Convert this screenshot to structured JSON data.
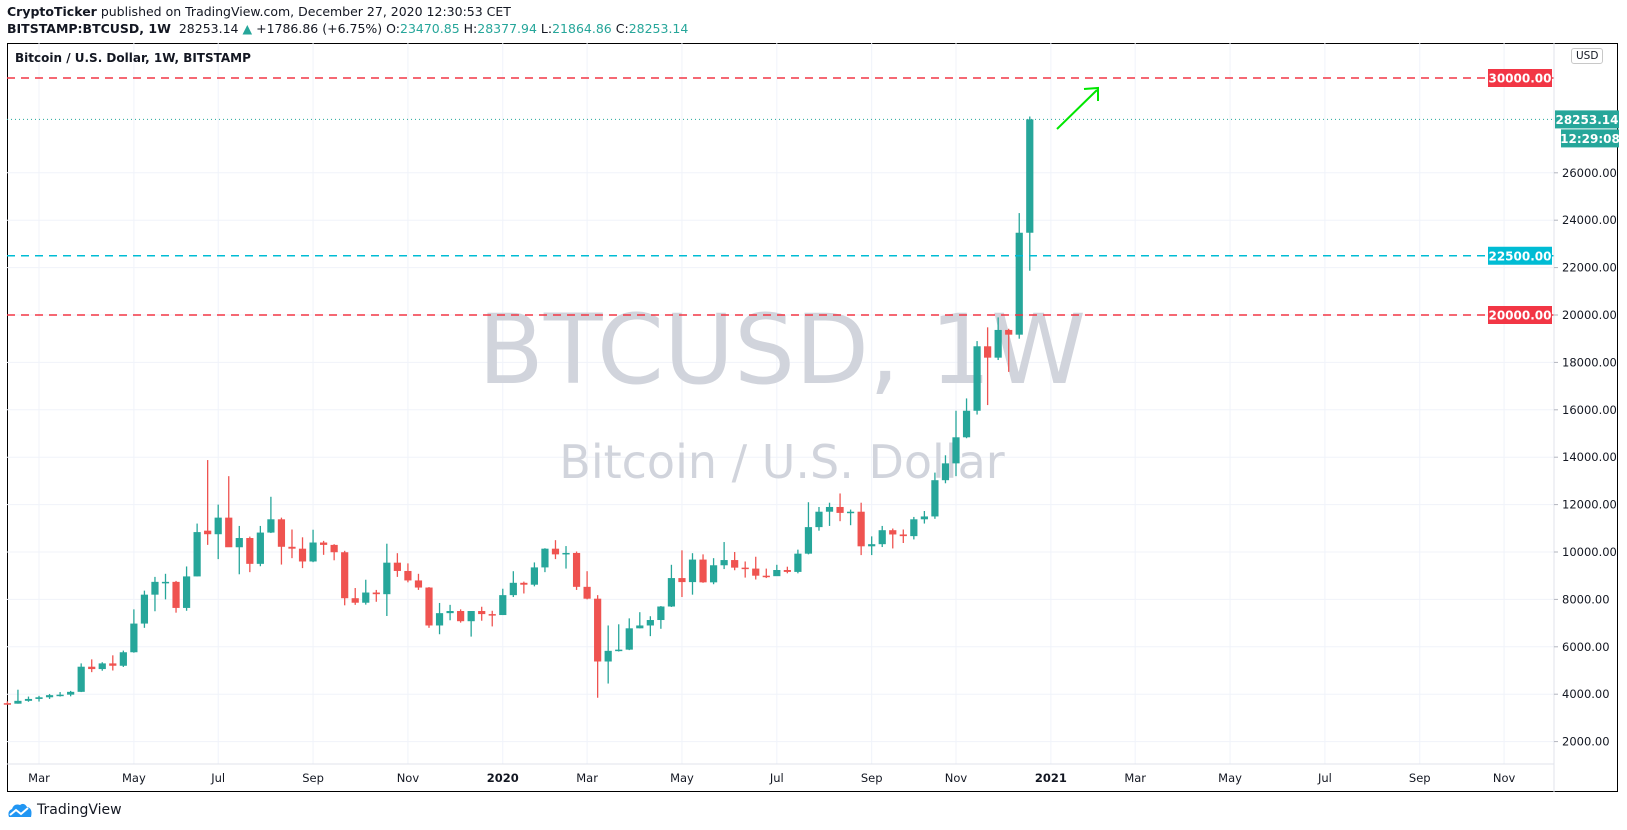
{
  "header": {
    "author": "CryptoTicker",
    "published": " published on TradingView.com, December 27, 2020 12:30:53 CET"
  },
  "legend": {
    "symbol": "BITSTAMP:BTCUSD, 1W",
    "last": "28253.14",
    "arrow": "▲",
    "change": "+1786.86 (+6.75%)",
    "o_label": "O:",
    "o": "23470.85",
    "h_label": "H:",
    "h": "28377.94",
    "l_label": "L:",
    "l": "21864.86",
    "c_label": "C:",
    "c": "28253.14"
  },
  "chart_title": "Bitcoin / U.S. Dollar, 1W, BITSTAMP",
  "watermark": {
    "line1": "BTCUSD, 1W",
    "line2": "Bitcoin / U.S. Dollar"
  },
  "currency": "USD",
  "footer": {
    "logo_text": "TradingView",
    "icon": "tradingview-cloud-logo"
  },
  "colors": {
    "up": "#26a69a",
    "down": "#ef5350",
    "resistance": "#f23645",
    "support_cyan": "#00bcd4",
    "annotation_arrow": "#00e600"
  },
  "chart_data": {
    "type": "candlestick",
    "interval": "1W",
    "ylim": [
      600,
      31000
    ],
    "grid": true,
    "y_ticks": [
      "2000.00",
      "4000.00",
      "6000.00",
      "8000.00",
      "10000.00",
      "12000.00",
      "14000.00",
      "16000.00",
      "18000.00",
      "20000.00",
      "22000.00",
      "24000.00",
      "26000.00"
    ],
    "x_ticks": [
      {
        "label": "Mar",
        "date": "2019-03-04"
      },
      {
        "label": "May",
        "date": "2019-05-06"
      },
      {
        "label": "Jul",
        "date": "2019-07-01"
      },
      {
        "label": "Sep",
        "date": "2019-09-02"
      },
      {
        "label": "Nov",
        "date": "2019-11-04"
      },
      {
        "label": "2020",
        "date": "2020-01-06",
        "bold": true
      },
      {
        "label": "Mar",
        "date": "2020-03-02"
      },
      {
        "label": "May",
        "date": "2020-05-04"
      },
      {
        "label": "Jul",
        "date": "2020-07-06"
      },
      {
        "label": "Sep",
        "date": "2020-09-07"
      },
      {
        "label": "Nov",
        "date": "2020-11-02"
      },
      {
        "label": "2021",
        "date": "2021-01-04",
        "bold": true
      },
      {
        "label": "Mar",
        "date": "2021-03-01"
      },
      {
        "label": "May",
        "date": "2021-05-03"
      },
      {
        "label": "Jul",
        "date": "2021-07-05"
      },
      {
        "label": "Sep",
        "date": "2021-09-06"
      },
      {
        "label": "Nov",
        "date": "2021-11-01"
      }
    ],
    "horizontal_lines": [
      {
        "price": 30000,
        "label": "30000.00",
        "color": "#f23645",
        "style": "dashed"
      },
      {
        "price": 22500,
        "label": "22500.00",
        "color": "#00bcd4",
        "style": "dashed"
      },
      {
        "price": 20000,
        "label": "20000.00",
        "color": "#f23645",
        "style": "dashed"
      }
    ],
    "last_price": {
      "price": 28253.14,
      "label": "28253.14",
      "countdown": "12:29:08",
      "color": "#26a69a"
    },
    "columns": [
      "date",
      "open",
      "high",
      "low",
      "close"
    ],
    "candles": [
      [
        "2019-02-11",
        3620,
        3700,
        3580,
        3600
      ],
      [
        "2019-02-18",
        3600,
        4190,
        3600,
        3720
      ],
      [
        "2019-02-25",
        3720,
        3900,
        3680,
        3800
      ],
      [
        "2019-03-04",
        3800,
        3930,
        3690,
        3870
      ],
      [
        "2019-03-11",
        3870,
        4010,
        3800,
        3960
      ],
      [
        "2019-03-18",
        3960,
        4090,
        3900,
        3980
      ],
      [
        "2019-03-25",
        3980,
        4140,
        3910,
        4100
      ],
      [
        "2019-04-01",
        4100,
        5300,
        4090,
        5160
      ],
      [
        "2019-04-08",
        5160,
        5470,
        4930,
        5060
      ],
      [
        "2019-04-15",
        5060,
        5350,
        4990,
        5300
      ],
      [
        "2019-04-22",
        5300,
        5640,
        5000,
        5200
      ],
      [
        "2019-04-29",
        5200,
        5840,
        5150,
        5770
      ],
      [
        "2019-05-06",
        5770,
        7580,
        5750,
        6980
      ],
      [
        "2019-05-13",
        6980,
        8370,
        6800,
        8200
      ],
      [
        "2019-05-20",
        8200,
        8950,
        7500,
        8740
      ],
      [
        "2019-05-27",
        8740,
        9080,
        8000,
        8740
      ],
      [
        "2019-06-03",
        8740,
        8780,
        7440,
        7640
      ],
      [
        "2019-06-10",
        7640,
        9390,
        7520,
        8970
      ],
      [
        "2019-06-17",
        8970,
        11200,
        8970,
        10840
      ],
      [
        "2019-06-24",
        10900,
        13880,
        10300,
        10750
      ],
      [
        "2019-07-01",
        10750,
        12000,
        9700,
        11450
      ],
      [
        "2019-07-08",
        11450,
        13200,
        10500,
        10200
      ],
      [
        "2019-07-15",
        10200,
        11100,
        9060,
        10590
      ],
      [
        "2019-07-22",
        10590,
        10650,
        9150,
        9500
      ],
      [
        "2019-07-29",
        9500,
        11100,
        9400,
        10820
      ],
      [
        "2019-08-05",
        10820,
        12330,
        10800,
        11380
      ],
      [
        "2019-08-12",
        11380,
        11450,
        9470,
        10220
      ],
      [
        "2019-08-19",
        10220,
        10950,
        9740,
        10140
      ],
      [
        "2019-08-26",
        10140,
        10620,
        9320,
        9600
      ],
      [
        "2019-09-02",
        9600,
        10940,
        9570,
        10400
      ],
      [
        "2019-09-09",
        10400,
        10470,
        9880,
        10300
      ],
      [
        "2019-09-16",
        10300,
        10330,
        9650,
        9990
      ],
      [
        "2019-09-23",
        9990,
        10050,
        7750,
        8050
      ],
      [
        "2019-09-30",
        8050,
        8480,
        7770,
        7860
      ],
      [
        "2019-10-07",
        7860,
        8830,
        7780,
        8290
      ],
      [
        "2019-10-14",
        8290,
        8400,
        7900,
        8220
      ],
      [
        "2019-10-21",
        8220,
        10350,
        7300,
        9550
      ],
      [
        "2019-10-28",
        9550,
        9950,
        8950,
        9200
      ],
      [
        "2019-11-04",
        9200,
        9520,
        8720,
        8800
      ],
      [
        "2019-11-11",
        8800,
        9080,
        8400,
        8500
      ],
      [
        "2019-11-18",
        8500,
        8520,
        6800,
        6900
      ],
      [
        "2019-11-25",
        6900,
        7850,
        6530,
        7420
      ],
      [
        "2019-12-02",
        7420,
        7770,
        7120,
        7510
      ],
      [
        "2019-12-09",
        7510,
        7580,
        7020,
        7080
      ],
      [
        "2019-12-16",
        7080,
        7510,
        6430,
        7510
      ],
      [
        "2019-12-23",
        7510,
        7690,
        7100,
        7380
      ],
      [
        "2019-12-30",
        7380,
        7520,
        6860,
        7340
      ],
      [
        "2020-01-06",
        7340,
        8450,
        7340,
        8180
      ],
      [
        "2020-01-13",
        8180,
        9190,
        8100,
        8700
      ],
      [
        "2020-01-20",
        8700,
        8750,
        8250,
        8620
      ],
      [
        "2020-01-27",
        8620,
        9560,
        8550,
        9350
      ],
      [
        "2020-02-03",
        9350,
        10160,
        9150,
        10140
      ],
      [
        "2020-02-10",
        10140,
        10500,
        9700,
        9900
      ],
      [
        "2020-02-17",
        9900,
        10250,
        9300,
        9960
      ],
      [
        "2020-02-24",
        9960,
        10020,
        8400,
        8530
      ],
      [
        "2020-03-02",
        8530,
        9190,
        8000,
        8030
      ],
      [
        "2020-03-09",
        8030,
        8180,
        3850,
        5380
      ],
      [
        "2020-03-16",
        5380,
        6900,
        4450,
        5830
      ],
      [
        "2020-03-23",
        5830,
        6950,
        5800,
        5880
      ],
      [
        "2020-03-30",
        5880,
        7200,
        5860,
        6780
      ],
      [
        "2020-04-06",
        6780,
        7460,
        6780,
        6900
      ],
      [
        "2020-04-13",
        6900,
        7290,
        6450,
        7130
      ],
      [
        "2020-04-20",
        7130,
        7720,
        6760,
        7700
      ],
      [
        "2020-04-27",
        7700,
        9460,
        7680,
        8900
      ],
      [
        "2020-05-04",
        8900,
        10070,
        8100,
        8730
      ],
      [
        "2020-05-11",
        8730,
        9950,
        8200,
        9680
      ],
      [
        "2020-05-18",
        9680,
        9900,
        8700,
        8720
      ],
      [
        "2020-05-25",
        8720,
        9740,
        8640,
        9440
      ],
      [
        "2020-06-01",
        9440,
        10420,
        9280,
        9660
      ],
      [
        "2020-06-08",
        9660,
        10000,
        9230,
        9340
      ],
      [
        "2020-06-15",
        9340,
        9600,
        8920,
        9300
      ],
      [
        "2020-06-22",
        9300,
        9800,
        8840,
        9000
      ],
      [
        "2020-06-29",
        9000,
        9300,
        8900,
        8980
      ],
      [
        "2020-07-06",
        8980,
        9460,
        9000,
        9240
      ],
      [
        "2020-07-13",
        9240,
        9380,
        9100,
        9160
      ],
      [
        "2020-07-20",
        9160,
        10100,
        9100,
        9930
      ],
      [
        "2020-07-27",
        9930,
        12100,
        9900,
        11050
      ],
      [
        "2020-08-03",
        11050,
        11900,
        10900,
        11700
      ],
      [
        "2020-08-10",
        11700,
        12080,
        11100,
        11900
      ],
      [
        "2020-08-17",
        11900,
        12470,
        11300,
        11650
      ],
      [
        "2020-08-24",
        11650,
        11790,
        11130,
        11700
      ],
      [
        "2020-08-31",
        11700,
        12080,
        9870,
        10240
      ],
      [
        "2020-09-07",
        10240,
        10660,
        9870,
        10330
      ],
      [
        "2020-09-14",
        10330,
        11100,
        10210,
        10920
      ],
      [
        "2020-09-21",
        10920,
        10990,
        10150,
        10740
      ],
      [
        "2020-09-28",
        10740,
        10950,
        10380,
        10670
      ],
      [
        "2020-10-05",
        10670,
        11480,
        10530,
        11380
      ],
      [
        "2020-10-12",
        11380,
        11730,
        11200,
        11500
      ],
      [
        "2020-10-19",
        11500,
        13350,
        11400,
        13030
      ],
      [
        "2020-10-26",
        13030,
        14080,
        12900,
        13740
      ],
      [
        "2020-11-02",
        13740,
        15960,
        13200,
        14840
      ],
      [
        "2020-11-09",
        14840,
        16480,
        14800,
        15960
      ],
      [
        "2020-11-16",
        15960,
        18900,
        15800,
        18680
      ],
      [
        "2020-11-23",
        18680,
        19480,
        16200,
        18200
      ],
      [
        "2020-11-30",
        18200,
        19900,
        18100,
        19370
      ],
      [
        "2020-12-07",
        19370,
        19420,
        17600,
        19170
      ],
      [
        "2020-12-14",
        19170,
        24300,
        19000,
        23470.85
      ],
      [
        "2020-12-21",
        23470.85,
        28377.94,
        21864.86,
        28253.14
      ]
    ]
  }
}
